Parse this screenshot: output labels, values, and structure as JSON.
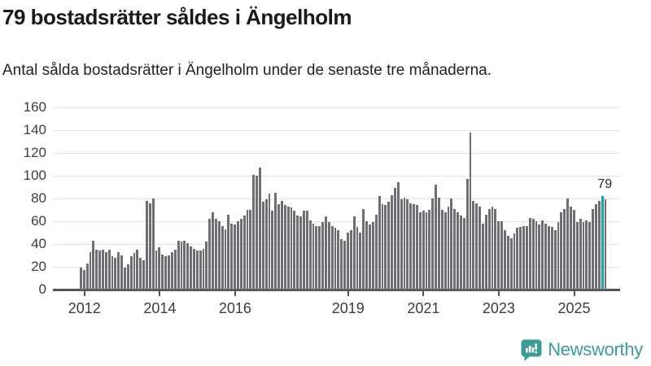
{
  "header": {
    "title": "79 bostadsrätter såldes i Ängelholm",
    "subtitle": "Antal sålda bostadsrätter i Ängelholm under de senaste tre månaderna."
  },
  "chart_data": {
    "type": "bar",
    "title": "79 bostadsrätter såldes i Ängelholm",
    "subtitle": "Antal sålda bostadsrätter i Ängelholm under de senaste tre månaderna.",
    "xlabel": "",
    "ylabel": "",
    "grid": true,
    "legend_position": "none",
    "ylim": [
      0,
      160
    ],
    "y_ticks": [
      0,
      20,
      40,
      60,
      80,
      100,
      120,
      140,
      160
    ],
    "frequency": "monthly",
    "x_start_month": "2011-12",
    "x_end_month": "2025-10",
    "x_year_ticks": [
      {
        "label": "2012",
        "month_index": 1
      },
      {
        "label": "2014",
        "month_index": 25
      },
      {
        "label": "2016",
        "month_index": 49
      },
      {
        "label": "2019",
        "month_index": 85
      },
      {
        "label": "2021",
        "month_index": 109
      },
      {
        "label": "2023",
        "month_index": 133
      },
      {
        "label": "2025",
        "month_index": 157
      }
    ],
    "values": [
      19,
      17,
      23,
      33,
      43,
      35,
      34,
      35,
      33,
      35,
      29,
      28,
      33,
      30,
      19,
      22,
      29,
      32,
      35,
      28,
      26,
      78,
      76,
      80,
      34,
      37,
      31,
      29,
      30,
      33,
      35,
      43,
      42,
      43,
      41,
      38,
      36,
      34,
      34,
      36,
      42,
      62,
      68,
      62,
      60,
      56,
      53,
      66,
      58,
      57,
      60,
      62,
      65,
      70,
      70,
      101,
      100,
      107,
      77,
      79,
      84,
      69,
      85,
      75,
      78,
      74,
      73,
      72,
      69,
      65,
      64,
      69,
      69,
      61,
      58,
      56,
      56,
      59,
      64,
      59,
      56,
      54,
      52,
      44,
      43,
      50,
      52,
      64,
      55,
      50,
      71,
      60,
      57,
      59,
      66,
      82,
      75,
      74,
      77,
      83,
      89,
      94,
      79,
      81,
      79,
      76,
      75,
      74,
      68,
      69,
      68,
      70,
      80,
      92,
      81,
      70,
      68,
      73,
      80,
      71,
      68,
      65,
      63,
      97,
      138,
      78,
      76,
      73,
      58,
      66,
      71,
      73,
      71,
      60,
      60,
      52,
      47,
      45,
      49,
      54,
      55,
      56,
      56,
      63,
      62,
      60,
      57,
      61,
      58,
      56,
      55,
      52,
      59,
      68,
      71,
      80,
      73,
      70,
      59,
      62,
      59,
      61,
      59,
      71,
      75,
      78,
      82,
      79
    ],
    "highlight": {
      "index": 166,
      "value": 79,
      "label": "79"
    },
    "bar_color": "#6e6e73",
    "highlight_color": "#18a0a4",
    "gridline_color": "#e2e2e2",
    "axis_color": "#54555a"
  },
  "branding": {
    "logo_text": "Newsworthy",
    "logo_color": "#3b9c95",
    "icon": "newsworthy-speech-bubble-bar-chart-icon"
  }
}
